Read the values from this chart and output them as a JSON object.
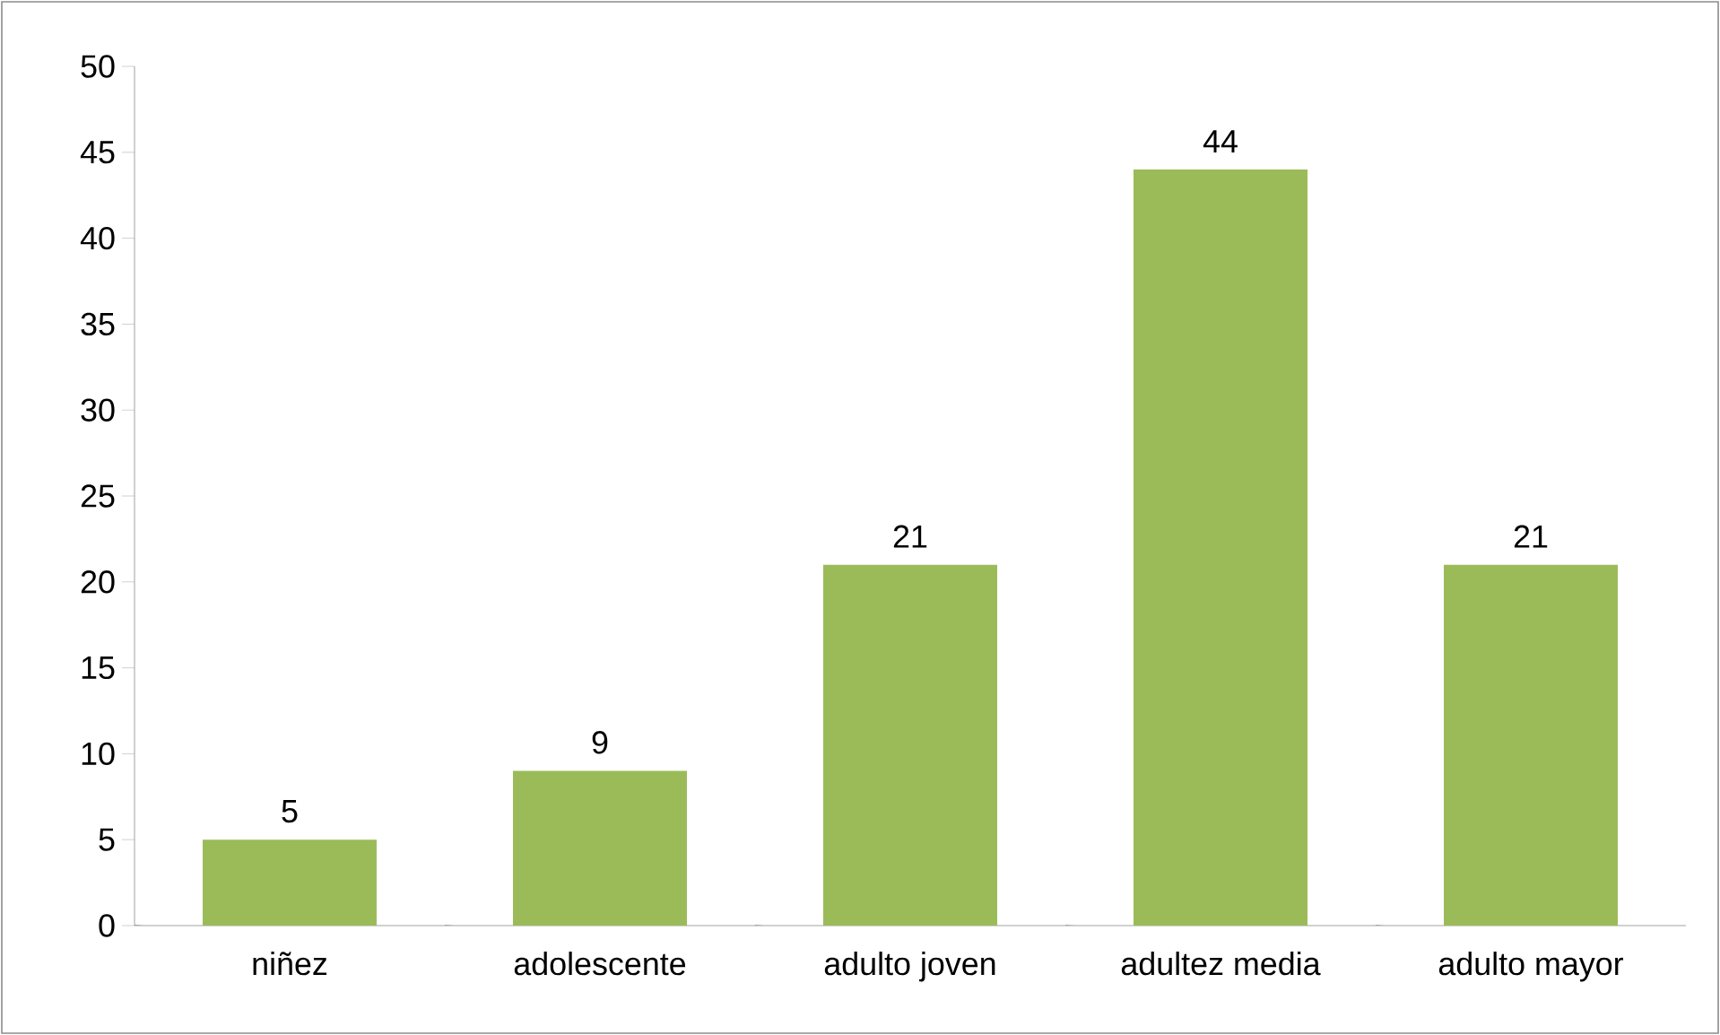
{
  "chart_data": {
    "type": "bar",
    "categories": [
      "niñez",
      "adolescente",
      "adulto joven",
      "adultez media",
      "adulto mayor"
    ],
    "values": [
      5,
      9,
      21,
      44,
      21
    ],
    "color": "#9bbb59",
    "ylim": [
      0,
      50
    ],
    "yticks": [
      0,
      5,
      10,
      15,
      20,
      25,
      30,
      35,
      40,
      45,
      50
    ],
    "data_labels": true,
    "grid": false
  }
}
